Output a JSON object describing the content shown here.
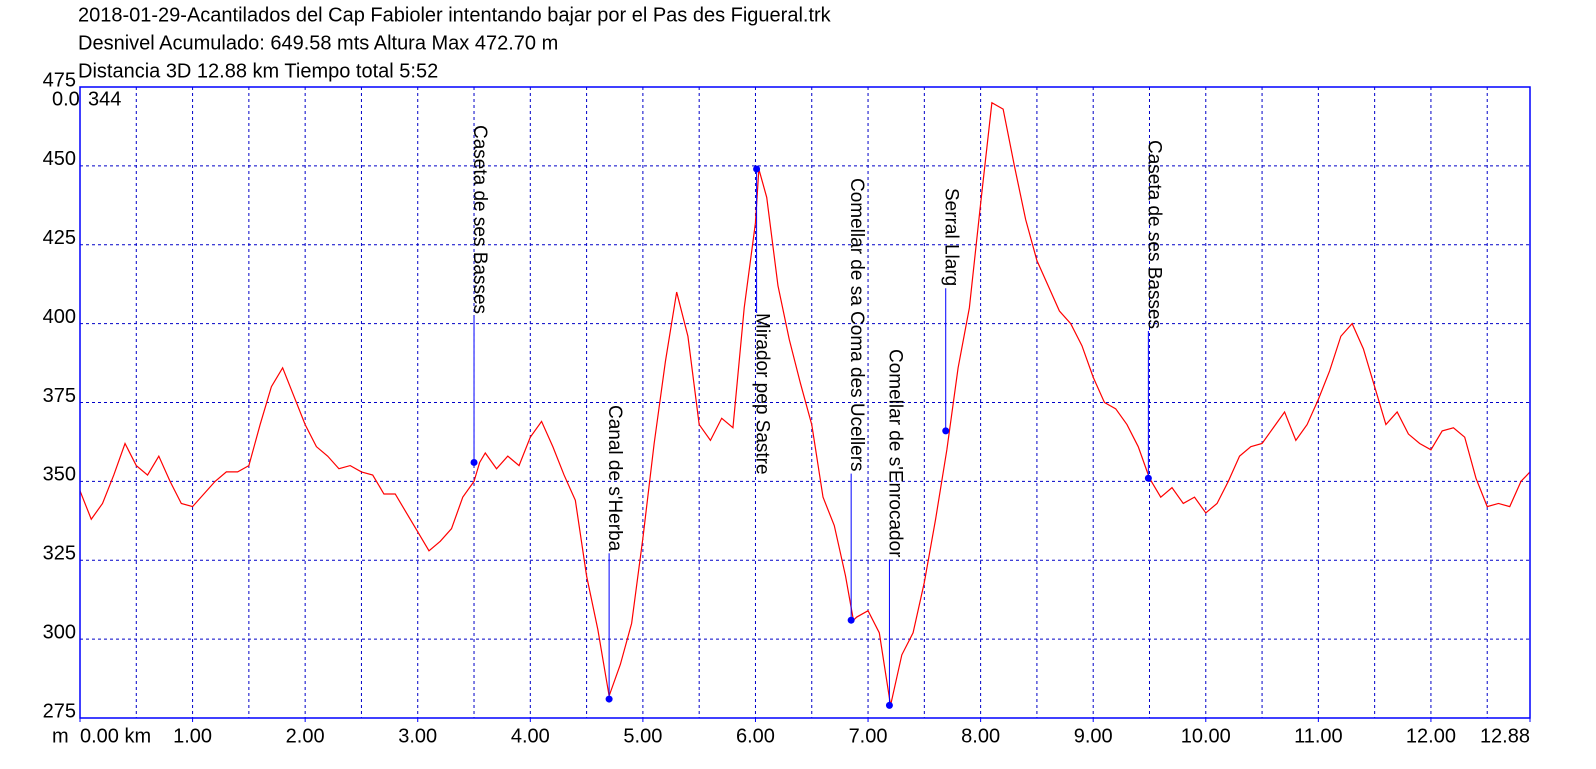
{
  "chart_data": {
    "type": "line",
    "title_lines": [
      "2018-01-29-Acantilados del Cap Fabioler intentando bajar por el Pas des Figueral.trk",
      "Desnivel Acumulado: 649.58 mts  Altura Max 472.70 m",
      "Distancia 3D 12.88 km  Tiempo total 5:52"
    ],
    "corner_labels": [
      "0.0",
      "344"
    ],
    "x_unit_label": "m",
    "x": [
      0,
      0.1,
      0.2,
      0.3,
      0.4,
      0.5,
      0.6,
      0.7,
      0.8,
      0.9,
      1.0,
      1.1,
      1.2,
      1.3,
      1.4,
      1.5,
      1.6,
      1.7,
      1.8,
      1.9,
      2.0,
      2.1,
      2.2,
      2.3,
      2.4,
      2.5,
      2.6,
      2.7,
      2.8,
      2.9,
      3.0,
      3.1,
      3.2,
      3.3,
      3.4,
      3.5,
      3.55,
      3.6,
      3.7,
      3.8,
      3.9,
      4.0,
      4.1,
      4.2,
      4.3,
      4.4,
      4.5,
      4.6,
      4.7,
      4.8,
      4.9,
      5.0,
      5.1,
      5.2,
      5.3,
      5.4,
      5.5,
      5.6,
      5.7,
      5.8,
      5.9,
      6.0,
      6.03,
      6.1,
      6.2,
      6.3,
      6.4,
      6.5,
      6.6,
      6.7,
      6.8,
      6.87,
      6.9,
      7.0,
      7.1,
      7.2,
      7.3,
      7.4,
      7.5,
      7.6,
      7.7,
      7.8,
      7.9,
      8.0,
      8.1,
      8.2,
      8.3,
      8.4,
      8.5,
      8.6,
      8.7,
      8.8,
      8.9,
      9.0,
      9.1,
      9.2,
      9.3,
      9.4,
      9.5,
      9.6,
      9.7,
      9.8,
      9.9,
      10.0,
      10.1,
      10.2,
      10.3,
      10.4,
      10.5,
      10.6,
      10.7,
      10.8,
      10.9,
      11.0,
      11.1,
      11.2,
      11.3,
      11.4,
      11.5,
      11.6,
      11.7,
      11.8,
      11.9,
      12.0,
      12.1,
      12.2,
      12.3,
      12.4,
      12.5,
      12.6,
      12.7,
      12.8,
      12.88
    ],
    "series": [
      {
        "name": "Altura",
        "color": "#ff0000",
        "values": [
          347,
          338,
          343,
          352,
          362,
          355,
          352,
          358,
          350,
          343,
          342,
          346,
          350,
          353,
          353,
          355,
          368,
          380,
          386,
          377,
          368,
          361,
          358,
          354,
          355,
          353,
          352,
          346,
          346,
          340,
          334,
          328,
          331,
          335,
          345,
          350,
          356,
          359,
          354,
          358,
          355,
          364,
          369,
          361,
          352,
          344,
          320,
          303,
          282,
          292,
          305,
          332,
          362,
          388,
          410,
          396,
          368,
          363,
          370,
          367,
          405,
          432,
          449,
          440,
          412,
          395,
          381,
          368,
          345,
          336,
          320,
          306,
          307,
          309,
          302,
          279,
          295,
          302,
          318,
          338,
          360,
          386,
          405,
          438,
          470,
          468,
          450,
          433,
          420,
          412,
          404,
          400,
          393,
          383,
          375,
          373,
          368,
          361,
          351,
          345,
          348,
          343,
          345,
          340,
          343,
          350,
          358,
          361,
          362,
          367,
          372,
          363,
          368,
          376,
          385,
          396,
          400,
          392,
          380,
          368,
          372,
          365,
          362,
          360,
          366,
          367,
          364,
          351,
          342,
          343,
          342,
          350,
          353
        ]
      }
    ],
    "waypoints": [
      {
        "label": "Caseta de ses Basses",
        "x": 3.5,
        "elevation": 356
      },
      {
        "label": "Canal de s'Herba",
        "x": 4.7,
        "elevation": 281
      },
      {
        "label": "Mirador pep Sastre",
        "x": 6.01,
        "elevation": 449
      },
      {
        "label": "Comellar de sa Coma des Ucellers",
        "x": 6.85,
        "elevation": 306
      },
      {
        "label": "Comellar de s'Enrocador",
        "x": 7.19,
        "elevation": 279
      },
      {
        "label": "Serral Llarg",
        "x": 7.69,
        "elevation": 366
      },
      {
        "label": "Caseta de ses Basses",
        "x": 9.49,
        "elevation": 351
      }
    ],
    "waypoint_color": "#0000ff",
    "xlim": [
      0,
      12.88
    ],
    "ylim": [
      275,
      475
    ],
    "xticks": [
      {
        "value": 0,
        "label": "0.00 km"
      },
      {
        "value": 1,
        "label": "1.00"
      },
      {
        "value": 2,
        "label": "2.00"
      },
      {
        "value": 3,
        "label": "3.00"
      },
      {
        "value": 4,
        "label": "4.00"
      },
      {
        "value": 5,
        "label": "5.00"
      },
      {
        "value": 6,
        "label": "6.00"
      },
      {
        "value": 7,
        "label": "7.00"
      },
      {
        "value": 8,
        "label": "8.00"
      },
      {
        "value": 9,
        "label": "9.00"
      },
      {
        "value": 10,
        "label": "10.00"
      },
      {
        "value": 11,
        "label": "11.00"
      },
      {
        "value": 12,
        "label": "12.00"
      },
      {
        "value": 12.88,
        "label": "12.88"
      }
    ],
    "xgrid": [
      0.5,
      1,
      1.5,
      2,
      2.5,
      3,
      3.5,
      4,
      4.5,
      5,
      5.5,
      6,
      6.5,
      7,
      7.5,
      8,
      8.5,
      9,
      9.5,
      10,
      10.5,
      11,
      11.5,
      12,
      12.5
    ],
    "yticks": [
      275,
      300,
      325,
      350,
      375,
      400,
      425,
      450,
      475
    ],
    "grid": true,
    "grid_color": "#0000c8",
    "frame_color": "#0000ff"
  }
}
